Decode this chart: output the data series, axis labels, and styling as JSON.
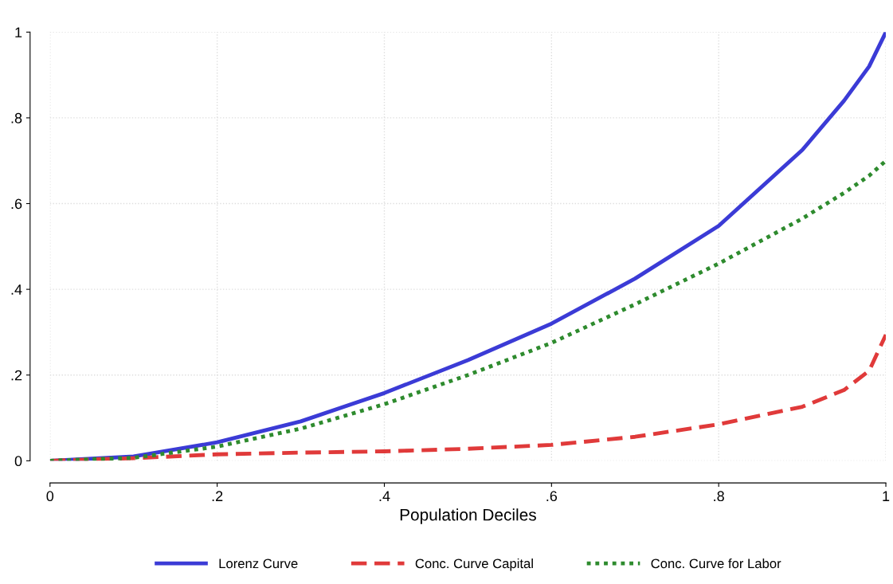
{
  "chart_data": {
    "type": "line",
    "xlabel": "Population Deciles",
    "x": [
      0,
      0.1,
      0.2,
      0.3,
      0.4,
      0.5,
      0.6,
      0.7,
      0.8,
      0.9,
      0.95,
      0.98,
      1.0
    ],
    "series": [
      {
        "name": "Lorenz Curve",
        "color": "#3b3bd6",
        "line_style": "solid",
        "values": [
          0,
          0.01,
          0.043,
          0.092,
          0.158,
          0.235,
          0.32,
          0.425,
          0.548,
          0.725,
          0.84,
          0.92,
          1.0
        ]
      },
      {
        "name": "Conc. Curve Capital",
        "color": "#e03a3a",
        "line_style": "dashed",
        "values": [
          0,
          0.006,
          0.015,
          0.019,
          0.022,
          0.028,
          0.037,
          0.056,
          0.085,
          0.126,
          0.165,
          0.21,
          0.294
        ]
      },
      {
        "name": "Conc. Curve for Labor",
        "color": "#2e8b2e",
        "line_style": "dotted",
        "values": [
          0,
          0.007,
          0.033,
          0.075,
          0.132,
          0.2,
          0.275,
          0.365,
          0.46,
          0.565,
          0.625,
          0.665,
          0.7
        ]
      }
    ],
    "xlim": [
      0,
      1
    ],
    "ylim": [
      0,
      1
    ],
    "xticks": [
      0,
      {
        "value": 0.2,
        "label": ".2"
      },
      {
        "value": 0.4,
        "label": ".4"
      },
      {
        "value": 0.6,
        "label": ".6"
      },
      {
        "value": 0.8,
        "label": ".8"
      },
      1
    ],
    "yticks": [
      0,
      {
        "value": 0.2,
        "label": ".2"
      },
      {
        "value": 0.4,
        "label": ".4"
      },
      {
        "value": 0.6,
        "label": ".6"
      },
      {
        "value": 0.8,
        "label": ".8"
      },
      1
    ],
    "grid": true,
    "legend": "bottom"
  }
}
